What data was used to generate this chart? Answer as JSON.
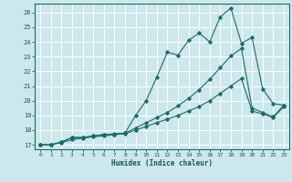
{
  "xlabel": "Humidex (Indice chaleur)",
  "bg_color": "#cce8ec",
  "line_color": "#1a6b6b",
  "grid_color": "#ffffff",
  "xlim": [
    -0.5,
    23.5
  ],
  "ylim": [
    16.7,
    26.6
  ],
  "xticks": [
    0,
    1,
    2,
    3,
    4,
    5,
    6,
    7,
    8,
    9,
    10,
    11,
    12,
    13,
    14,
    15,
    16,
    17,
    18,
    19,
    20,
    21,
    22,
    23
  ],
  "yticks": [
    17,
    18,
    19,
    20,
    21,
    22,
    23,
    24,
    25,
    26
  ],
  "line1_y": [
    17.0,
    17.0,
    17.2,
    17.5,
    17.5,
    17.6,
    17.7,
    17.7,
    17.8,
    19.0,
    20.0,
    21.6,
    23.3,
    23.1,
    24.1,
    24.6,
    24.0,
    25.7,
    26.3,
    23.9,
    24.3,
    20.8,
    19.8,
    19.7
  ],
  "line2_y": [
    17.0,
    17.0,
    17.2,
    17.5,
    17.5,
    17.6,
    17.7,
    17.75,
    17.8,
    18.15,
    18.5,
    18.85,
    19.2,
    19.65,
    20.15,
    20.75,
    21.45,
    22.25,
    23.05,
    23.55,
    19.5,
    19.2,
    18.9,
    19.7
  ],
  "line3_y": [
    17.0,
    17.0,
    17.15,
    17.35,
    17.45,
    17.55,
    17.6,
    17.7,
    17.75,
    18.0,
    18.25,
    18.5,
    18.75,
    19.0,
    19.3,
    19.6,
    20.0,
    20.5,
    21.0,
    21.5,
    19.3,
    19.1,
    18.85,
    19.6
  ]
}
